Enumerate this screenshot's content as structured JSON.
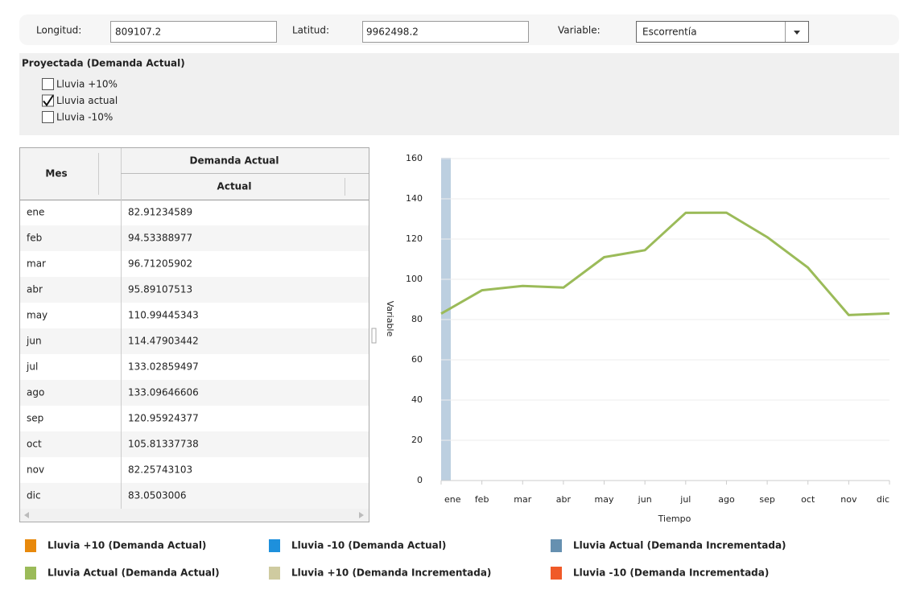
{
  "form": {
    "lon_label": "Longitud:",
    "lon_value": "809107.2",
    "lat_label": "Latitud:",
    "lat_value": "9962498.2",
    "var_label": "Variable:",
    "var_value": "Escorrentía"
  },
  "scenario": {
    "title": "Proyectada (Demanda Actual)",
    "options": [
      {
        "label": "Lluvia +10%",
        "checked": false
      },
      {
        "label": "Lluvia actual",
        "checked": true
      },
      {
        "label": "Lluvia -10%",
        "checked": false
      }
    ]
  },
  "table": {
    "month_header": "Mes",
    "group_header": "Demanda Actual",
    "sub_header": "Actual"
  },
  "chart_data": {
    "type": "line",
    "xlabel": "Tiempo",
    "ylabel": "Variable",
    "categories": [
      "ene",
      "feb",
      "mar",
      "abr",
      "may",
      "jun",
      "jul",
      "ago",
      "sep",
      "oct",
      "nov",
      "dic"
    ],
    "series": [
      {
        "name": "Lluvia Actual (Demanda Actual)",
        "color": "#9bbb59",
        "values": [
          82.91234589,
          94.53388977,
          96.71205902,
          95.89107513,
          110.99445343,
          114.47903442,
          133.02859497,
          133.09646606,
          120.95924377,
          105.81337738,
          82.25743103,
          83.0503006
        ]
      }
    ],
    "other_series": [
      {
        "name": "Lluvia +10 (Demanda Actual)",
        "color": "#e8890c"
      },
      {
        "name": "Lluvia -10 (Demanda Actual)",
        "color": "#1e90dc"
      },
      {
        "name": "Lluvia Actual (Demanda Incrementada)",
        "color": "#6690b0"
      },
      {
        "name": "Lluvia +10 (Demanda Incrementada)",
        "color": "#cfcba0"
      },
      {
        "name": "Lluvia -10 (Demanda Incrementada)",
        "color": "#f05a28"
      }
    ],
    "ylim": [
      0,
      160
    ],
    "yticks": [
      0,
      20,
      40,
      60,
      80,
      100,
      120,
      140,
      160
    ],
    "grid": true
  }
}
